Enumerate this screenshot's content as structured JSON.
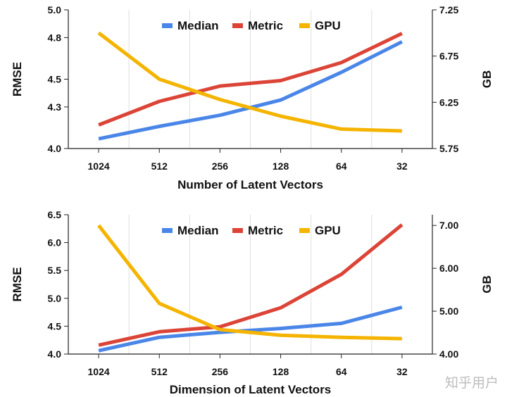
{
  "watermark": "知乎用户",
  "chart_data": [
    {
      "type": "line",
      "title": "",
      "xlabel": "Number of Latent Vectors",
      "ylabel": "RMSE",
      "y2label": "GB",
      "categories": [
        "1024",
        "512",
        "256",
        "128",
        "64",
        "32"
      ],
      "ylim": [
        4.0,
        5.0
      ],
      "yticks": [
        "4.0",
        "4.3",
        "4.5",
        "4.8",
        "5.0"
      ],
      "y2lim": [
        5.75,
        7.25
      ],
      "y2ticks": [
        "5.75",
        "6.25",
        "6.75",
        "7.25"
      ],
      "grid": true,
      "legend_position": "top",
      "series": [
        {
          "name": "Median",
          "axis": "left",
          "color": "#4a86e8",
          "values": [
            4.07,
            4.16,
            4.24,
            4.35,
            4.55,
            4.77
          ]
        },
        {
          "name": "Metric",
          "axis": "left",
          "color": "#db4437",
          "values": [
            4.17,
            4.34,
            4.45,
            4.49,
            4.62,
            4.83
          ]
        },
        {
          "name": "GPU",
          "axis": "right",
          "color": "#f4b400",
          "values": [
            7.0,
            6.5,
            6.28,
            6.1,
            5.96,
            5.94
          ]
        }
      ]
    },
    {
      "type": "line",
      "title": "",
      "xlabel": "Dimension of Latent Vectors",
      "ylabel": "RMSE",
      "y2label": "GB",
      "categories": [
        "1024",
        "512",
        "256",
        "128",
        "64",
        "32"
      ],
      "ylim": [
        4.0,
        6.5
      ],
      "yticks": [
        "4.0",
        "4.5",
        "5.0",
        "5.5",
        "6.0",
        "6.5"
      ],
      "y2lim": [
        4.0,
        7.25
      ],
      "y2ticks": [
        "4.00",
        "5.00",
        "6.00",
        "7.00"
      ],
      "grid": true,
      "legend_position": "top",
      "series": [
        {
          "name": "Median",
          "axis": "left",
          "color": "#4a86e8",
          "values": [
            4.06,
            4.3,
            4.39,
            4.46,
            4.55,
            4.84
          ]
        },
        {
          "name": "Metric",
          "axis": "left",
          "color": "#db4437",
          "values": [
            4.16,
            4.4,
            4.49,
            4.83,
            5.43,
            6.32
          ]
        },
        {
          "name": "GPU",
          "axis": "right",
          "color": "#f4b400",
          "values": [
            7.0,
            5.18,
            4.57,
            4.44,
            4.39,
            4.36
          ]
        }
      ]
    }
  ]
}
